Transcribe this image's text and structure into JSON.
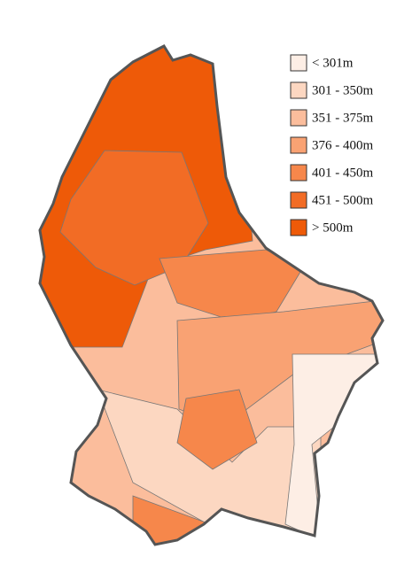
{
  "legend": {
    "items": [
      {
        "label": "< 301m",
        "color": "#fdeee5"
      },
      {
        "label": "301 - 350m",
        "color": "#fcd7c1"
      },
      {
        "label": "351 - 375m",
        "color": "#fbbd9c"
      },
      {
        "label": "376 - 400m",
        "color": "#f9a273"
      },
      {
        "label": "401 - 450m",
        "color": "#f6874b"
      },
      {
        "label": "451 - 500m",
        "color": "#f26c25"
      },
      {
        "label": "> 500m",
        "color": "#ee5a08"
      }
    ]
  }
}
